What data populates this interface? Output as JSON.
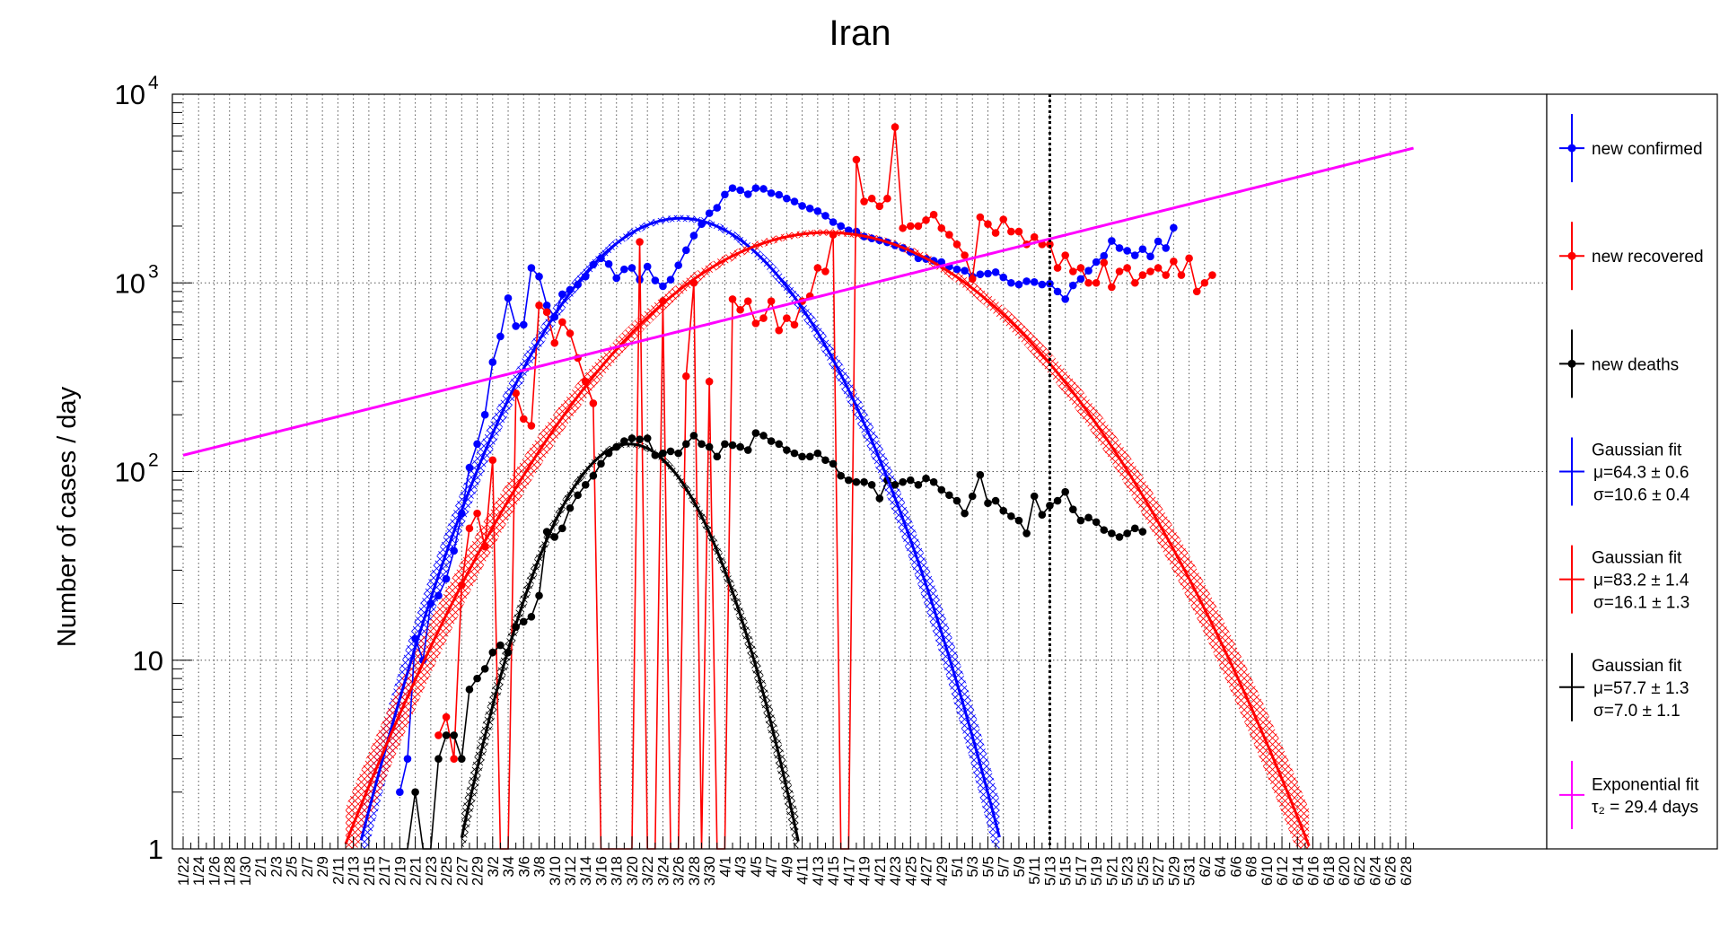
{
  "chart_data": {
    "type": "line",
    "title": "Iran",
    "xlabel": "",
    "ylabel": "Number of cases / day",
    "yscale": "log",
    "ylim": [
      1,
      10000
    ],
    "xlim": [
      0,
      161
    ],
    "x_tick_labels": [
      "1/22",
      "1/24",
      "1/26",
      "1/28",
      "1/30",
      "2/1",
      "2/3",
      "2/5",
      "2/7",
      "2/9",
      "2/11",
      "2/13",
      "2/15",
      "2/17",
      "2/19",
      "2/21",
      "2/23",
      "2/25",
      "2/27",
      "2/29",
      "3/2",
      "3/4",
      "3/6",
      "3/8",
      "3/10",
      "3/12",
      "3/14",
      "3/16",
      "3/18",
      "3/20",
      "3/22",
      "3/24",
      "3/26",
      "3/28",
      "3/30",
      "4/1",
      "4/3",
      "4/5",
      "4/7",
      "4/9",
      "4/11",
      "4/13",
      "4/15",
      "4/17",
      "4/19",
      "4/21",
      "4/23",
      "4/25",
      "4/27",
      "4/29",
      "5/1",
      "5/3",
      "5/5",
      "5/7",
      "5/9",
      "5/11",
      "5/13",
      "5/15",
      "5/17",
      "5/19",
      "5/21",
      "5/23",
      "5/25",
      "5/27",
      "5/29",
      "5/31",
      "6/2",
      "6/4",
      "6/6",
      "6/8",
      "6/10",
      "6/12",
      "6/14",
      "6/16",
      "6/18",
      "6/20",
      "6/22",
      "6/24",
      "6/26",
      "6/28"
    ],
    "y_tick_labels": [
      {
        "value": 1,
        "base": "1",
        "exp": ""
      },
      {
        "value": 10,
        "base": "10",
        "exp": ""
      },
      {
        "value": 100,
        "base": "10",
        "exp": "2"
      },
      {
        "value": 1000,
        "base": "10",
        "exp": "3"
      },
      {
        "value": 10000,
        "base": "10",
        "exp": "4"
      }
    ],
    "grid": true,
    "vline": {
      "x": 112,
      "style": "dotted",
      "color": "#000000"
    },
    "legend": {
      "placement": "right",
      "entries": [
        {
          "lines": [
            "new confirmed"
          ],
          "color": "#0000ff",
          "marker": true
        },
        {
          "lines": [
            "new recovered"
          ],
          "color": "#ff0000",
          "marker": true
        },
        {
          "lines": [
            "new deaths"
          ],
          "color": "#000000",
          "marker": true
        },
        {
          "lines": [
            "Gaussian fit",
            "μ=64.3 ± 0.6",
            "σ=10.6 ± 0.4"
          ],
          "color": "#0000ff",
          "marker": false
        },
        {
          "lines": [
            "Gaussian fit",
            "μ=83.2 ± 1.4",
            "σ=16.1 ± 1.3"
          ],
          "color": "#ff0000",
          "marker": false
        },
        {
          "lines": [
            "Gaussian fit",
            "μ=57.7 ± 1.3",
            "σ=7.0 ± 1.1"
          ],
          "color": "#000000",
          "marker": false
        },
        {
          "lines": [
            "Exponential fit",
            "τ₂ = 29.4 days"
          ],
          "color": "#ff00ff",
          "marker": false
        }
      ]
    },
    "series": [
      {
        "name": "new confirmed",
        "color": "#0000ff",
        "x_start": 28,
        "values": [
          2,
          3,
          13,
          10,
          20,
          22,
          27,
          38,
          60,
          105,
          140,
          200,
          380,
          520,
          830,
          590,
          600,
          1200,
          1080,
          760,
          660,
          870,
          920,
          980,
          1080,
          1250,
          1350,
          1260,
          1060,
          1180,
          1200,
          1040,
          1220,
          1030,
          960,
          1040,
          1240,
          1490,
          1780,
          2050,
          2340,
          2500,
          2940,
          3180,
          3100,
          2950,
          3180,
          3150,
          2990,
          2930,
          2800,
          2700,
          2560,
          2480,
          2400,
          2270,
          2100,
          2000,
          1900,
          1870,
          1760,
          1720,
          1680,
          1640,
          1580,
          1530,
          1460,
          1350,
          1340,
          1310,
          1290,
          1220,
          1180,
          1160,
          1080,
          1110,
          1120,
          1140,
          1070,
          1000,
          980,
          1020,
          1010,
          980,
          990,
          900,
          820,
          970,
          1050,
          1160,
          1290,
          1390,
          1670,
          1530,
          1480,
          1400,
          1510,
          1380,
          1660,
          1530,
          1960
        ]
      },
      {
        "name": "new recovered",
        "color": "#ff0000",
        "x_start": 33,
        "values": [
          4,
          5,
          3,
          25,
          50,
          60,
          40,
          115,
          1,
          1,
          260,
          190,
          175,
          760,
          700,
          480,
          620,
          540,
          400,
          300,
          230,
          1,
          1,
          1,
          1,
          1,
          1650,
          1,
          1,
          800,
          1,
          1,
          320,
          1000,
          1,
          300,
          1,
          1,
          820,
          720,
          800,
          610,
          650,
          800,
          560,
          650,
          600,
          800,
          850,
          1200,
          1150,
          1800,
          1,
          1,
          4500,
          2700,
          2800,
          2550,
          2800,
          6700,
          1950,
          2000,
          2000,
          2150,
          2300,
          1950,
          1800,
          1600,
          1400,
          1050,
          2230,
          2050,
          1840,
          2170,
          1870,
          1870,
          1600,
          1750,
          1600,
          1600,
          1200,
          1400,
          1150,
          1200,
          1000,
          1000,
          1280,
          950,
          1150,
          1200,
          1000,
          1100,
          1150,
          1200,
          1100,
          1300,
          1100,
          1350,
          900,
          1000,
          1100
        ]
      },
      {
        "name": "new deaths",
        "color": "#000000",
        "x_start": 28,
        "values": [
          1,
          1,
          2,
          1,
          1,
          3,
          4,
          4,
          3,
          7,
          8,
          9,
          11,
          12,
          11,
          15,
          16,
          17,
          22,
          48,
          45,
          50,
          64,
          75,
          85,
          95,
          110,
          125,
          135,
          145,
          150,
          148,
          150,
          122,
          125,
          128,
          125,
          140,
          155,
          140,
          135,
          120,
          140,
          138,
          135,
          130,
          160,
          155,
          145,
          140,
          130,
          125,
          120,
          120,
          125,
          115,
          110,
          95,
          90,
          88,
          88,
          85,
          72,
          90,
          85,
          88,
          90,
          85,
          92,
          88,
          80,
          75,
          70,
          60,
          74,
          96,
          68,
          70,
          62,
          58,
          55,
          47,
          74,
          59,
          66,
          70,
          78,
          63,
          55,
          57,
          54,
          49,
          47,
          45,
          47,
          50,
          48
        ]
      }
    ],
    "fits": [
      {
        "name": "Gaussian fit (confirmed)",
        "color": "#0000ff",
        "type": "gaussian",
        "amplitude": 2200,
        "mu": 64.3,
        "sigma": 10.6,
        "peak_fraction_x": 64.3,
        "x_start": 21,
        "x_end": 159,
        "uncertainty_band": true
      },
      {
        "name": "Gaussian fit (recovered)",
        "color": "#ff0000",
        "type": "gaussian",
        "amplitude": 1850,
        "mu": 83.2,
        "sigma": 16.1,
        "x_start": 0,
        "x_end": 159,
        "uncertainty_band": true
      },
      {
        "name": "Gaussian fit (deaths)",
        "color": "#000000",
        "type": "gaussian",
        "amplitude": 140,
        "mu": 57.7,
        "sigma": 7.0,
        "x_start": 0,
        "x_end": 159,
        "uncertainty_band": true
      },
      {
        "name": "Exponential fit",
        "color": "#ff00ff",
        "type": "exponential",
        "tau2_days": 29.4,
        "x_start": 0,
        "x_end": 159,
        "y_at_start": 122
      }
    ]
  }
}
